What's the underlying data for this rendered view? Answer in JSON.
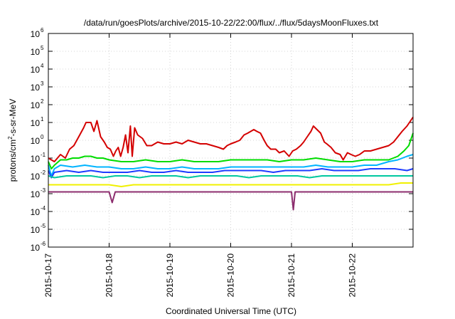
{
  "chart_data": {
    "type": "line",
    "title": "/data/run/goesPlots/archive/2015-10-22/22:00/flux/../flux/5daysMoonFluxes.txt",
    "xlabel": "Coordinated Universal Time (UTC)",
    "ylabel_parts": {
      "pre": "protons/cm",
      "sup": "2",
      "post": "-s-sr-MeV"
    },
    "x_ticks": [
      "2015-10-17",
      "2015-10-18",
      "2015-10-19",
      "2015-10-20",
      "2015-10-21",
      "2015-10-22"
    ],
    "y_ticks": [
      -6,
      -5,
      -4,
      -3,
      -2,
      -1,
      0,
      1,
      2,
      3,
      4,
      5,
      6
    ],
    "y_tick_base": "10",
    "xlim_days": [
      0,
      6.0
    ],
    "ylim_log10": [
      -6,
      6
    ],
    "y_scale": "log",
    "grid": true,
    "series": [
      {
        "color": "#d40000",
        "values": [
          [
            0.0,
            -1.0
          ],
          [
            0.1,
            -1.2
          ],
          [
            0.2,
            -0.8
          ],
          [
            0.28,
            -1.0
          ],
          [
            0.35,
            -0.5
          ],
          [
            0.42,
            -0.3
          ],
          [
            0.5,
            0.2
          ],
          [
            0.58,
            0.7
          ],
          [
            0.62,
            1.0
          ],
          [
            0.7,
            1.0
          ],
          [
            0.75,
            0.5
          ],
          [
            0.8,
            1.1
          ],
          [
            0.86,
            0.2
          ],
          [
            0.92,
            -0.1
          ],
          [
            0.97,
            -0.4
          ],
          [
            1.02,
            -0.5
          ],
          [
            1.07,
            -0.9
          ],
          [
            1.11,
            -0.6
          ],
          [
            1.15,
            -0.4
          ],
          [
            1.19,
            -0.9
          ],
          [
            1.23,
            -0.4
          ],
          [
            1.27,
            0.3
          ],
          [
            1.31,
            -0.7
          ],
          [
            1.35,
            0.8
          ],
          [
            1.38,
            -0.9
          ],
          [
            1.42,
            0.7
          ],
          [
            1.47,
            0.3
          ],
          [
            1.55,
            0.1
          ],
          [
            1.62,
            -0.3
          ],
          [
            1.7,
            -0.3
          ],
          [
            1.8,
            -0.1
          ],
          [
            1.9,
            -0.2
          ],
          [
            2.0,
            -0.2
          ],
          [
            2.1,
            -0.1
          ],
          [
            2.2,
            -0.2
          ],
          [
            2.3,
            0.0
          ],
          [
            2.4,
            -0.1
          ],
          [
            2.5,
            -0.2
          ],
          [
            2.6,
            -0.2
          ],
          [
            2.7,
            -0.3
          ],
          [
            2.8,
            -0.4
          ],
          [
            2.88,
            -0.5
          ],
          [
            2.94,
            -0.3
          ],
          [
            3.0,
            -0.2
          ],
          [
            3.08,
            -0.1
          ],
          [
            3.15,
            0.0
          ],
          [
            3.22,
            0.3
          ],
          [
            3.28,
            0.4
          ],
          [
            3.33,
            0.5
          ],
          [
            3.38,
            0.6
          ],
          [
            3.43,
            0.5
          ],
          [
            3.49,
            0.4
          ],
          [
            3.55,
            0.0
          ],
          [
            3.6,
            -0.3
          ],
          [
            3.66,
            -0.5
          ],
          [
            3.74,
            -0.5
          ],
          [
            3.8,
            -0.7
          ],
          [
            3.88,
            -0.6
          ],
          [
            3.96,
            -0.9
          ],
          [
            4.02,
            -0.6
          ],
          [
            4.08,
            -0.5
          ],
          [
            4.15,
            -0.3
          ],
          [
            4.2,
            -0.1
          ],
          [
            4.26,
            0.2
          ],
          [
            4.32,
            0.5
          ],
          [
            4.36,
            0.8
          ],
          [
            4.42,
            0.6
          ],
          [
            4.48,
            0.4
          ],
          [
            4.54,
            -0.1
          ],
          [
            4.58,
            -0.2
          ],
          [
            4.65,
            -0.4
          ],
          [
            4.72,
            -0.7
          ],
          [
            4.8,
            -0.8
          ],
          [
            4.85,
            -1.1
          ],
          [
            4.92,
            -0.7
          ],
          [
            4.98,
            -0.8
          ],
          [
            5.05,
            -0.9
          ],
          [
            5.12,
            -0.8
          ],
          [
            5.2,
            -0.6
          ],
          [
            5.3,
            -0.6
          ],
          [
            5.4,
            -0.5
          ],
          [
            5.5,
            -0.4
          ],
          [
            5.6,
            -0.3
          ],
          [
            5.68,
            -0.1
          ],
          [
            5.75,
            0.2
          ],
          [
            5.82,
            0.5
          ],
          [
            5.9,
            0.8
          ],
          [
            5.96,
            1.1
          ],
          [
            6.0,
            1.3
          ]
        ]
      },
      {
        "color": "#00dc00",
        "values": [
          [
            0.0,
            -1.2
          ],
          [
            0.05,
            -1.6
          ],
          [
            0.1,
            -1.4
          ],
          [
            0.2,
            -1.1
          ],
          [
            0.3,
            -1.1
          ],
          [
            0.4,
            -1.0
          ],
          [
            0.5,
            -1.0
          ],
          [
            0.6,
            -0.9
          ],
          [
            0.7,
            -0.9
          ],
          [
            0.8,
            -1.0
          ],
          [
            0.9,
            -1.0
          ],
          [
            1.0,
            -1.1
          ],
          [
            1.2,
            -1.2
          ],
          [
            1.4,
            -1.2
          ],
          [
            1.6,
            -1.1
          ],
          [
            1.8,
            -1.2
          ],
          [
            2.0,
            -1.2
          ],
          [
            2.2,
            -1.1
          ],
          [
            2.4,
            -1.2
          ],
          [
            2.6,
            -1.2
          ],
          [
            2.8,
            -1.2
          ],
          [
            3.0,
            -1.1
          ],
          [
            3.2,
            -1.1
          ],
          [
            3.4,
            -1.1
          ],
          [
            3.6,
            -1.1
          ],
          [
            3.8,
            -1.2
          ],
          [
            4.0,
            -1.1
          ],
          [
            4.2,
            -1.1
          ],
          [
            4.4,
            -1.0
          ],
          [
            4.6,
            -1.1
          ],
          [
            4.8,
            -1.2
          ],
          [
            5.0,
            -1.2
          ],
          [
            5.2,
            -1.1
          ],
          [
            5.4,
            -1.1
          ],
          [
            5.6,
            -1.1
          ],
          [
            5.75,
            -0.9
          ],
          [
            5.85,
            -0.6
          ],
          [
            5.93,
            -0.3
          ],
          [
            6.0,
            0.4
          ]
        ]
      },
      {
        "color": "#00b4ff",
        "values": [
          [
            0.0,
            -1.4
          ],
          [
            0.05,
            -2.0
          ],
          [
            0.1,
            -1.6
          ],
          [
            0.2,
            -1.4
          ],
          [
            0.4,
            -1.5
          ],
          [
            0.6,
            -1.4
          ],
          [
            0.8,
            -1.5
          ],
          [
            1.0,
            -1.5
          ],
          [
            1.2,
            -1.6
          ],
          [
            1.4,
            -1.6
          ],
          [
            1.6,
            -1.5
          ],
          [
            1.8,
            -1.6
          ],
          [
            2.0,
            -1.6
          ],
          [
            2.2,
            -1.5
          ],
          [
            2.4,
            -1.6
          ],
          [
            2.6,
            -1.6
          ],
          [
            2.8,
            -1.6
          ],
          [
            3.0,
            -1.5
          ],
          [
            3.2,
            -1.5
          ],
          [
            3.4,
            -1.5
          ],
          [
            3.6,
            -1.5
          ],
          [
            3.8,
            -1.5
          ],
          [
            4.0,
            -1.5
          ],
          [
            4.2,
            -1.5
          ],
          [
            4.4,
            -1.4
          ],
          [
            4.6,
            -1.5
          ],
          [
            4.8,
            -1.5
          ],
          [
            5.0,
            -1.5
          ],
          [
            5.2,
            -1.4
          ],
          [
            5.4,
            -1.4
          ],
          [
            5.6,
            -1.2
          ],
          [
            5.75,
            -1.1
          ],
          [
            5.9,
            -0.9
          ],
          [
            6.0,
            -0.8
          ]
        ]
      },
      {
        "color": "#1e3cff",
        "values": [
          [
            0.0,
            -1.7
          ],
          [
            0.05,
            -2.1
          ],
          [
            0.1,
            -1.8
          ],
          [
            0.3,
            -1.7
          ],
          [
            0.5,
            -1.8
          ],
          [
            0.7,
            -1.7
          ],
          [
            0.9,
            -1.8
          ],
          [
            1.1,
            -1.8
          ],
          [
            1.3,
            -1.8
          ],
          [
            1.5,
            -1.7
          ],
          [
            1.7,
            -1.8
          ],
          [
            1.9,
            -1.8
          ],
          [
            2.1,
            -1.7
          ],
          [
            2.3,
            -1.8
          ],
          [
            2.5,
            -1.8
          ],
          [
            2.7,
            -1.8
          ],
          [
            2.9,
            -1.7
          ],
          [
            3.1,
            -1.7
          ],
          [
            3.3,
            -1.7
          ],
          [
            3.5,
            -1.7
          ],
          [
            3.7,
            -1.8
          ],
          [
            3.9,
            -1.7
          ],
          [
            4.1,
            -1.7
          ],
          [
            4.3,
            -1.7
          ],
          [
            4.5,
            -1.6
          ],
          [
            4.7,
            -1.7
          ],
          [
            4.9,
            -1.7
          ],
          [
            5.1,
            -1.7
          ],
          [
            5.3,
            -1.6
          ],
          [
            5.5,
            -1.6
          ],
          [
            5.7,
            -1.6
          ],
          [
            5.9,
            -1.7
          ],
          [
            6.0,
            -1.6
          ]
        ]
      },
      {
        "color": "#00c8a0",
        "values": [
          [
            0.0,
            -2.0
          ],
          [
            0.1,
            -2.1
          ],
          [
            0.3,
            -2.0
          ],
          [
            0.5,
            -2.0
          ],
          [
            0.7,
            -2.0
          ],
          [
            0.9,
            -2.1
          ],
          [
            1.1,
            -2.0
          ],
          [
            1.3,
            -2.0
          ],
          [
            1.5,
            -2.1
          ],
          [
            1.7,
            -2.0
          ],
          [
            1.9,
            -2.0
          ],
          [
            2.1,
            -2.0
          ],
          [
            2.3,
            -2.1
          ],
          [
            2.5,
            -2.0
          ],
          [
            2.7,
            -2.0
          ],
          [
            2.9,
            -2.0
          ],
          [
            3.1,
            -2.0
          ],
          [
            3.3,
            -2.1
          ],
          [
            3.5,
            -2.0
          ],
          [
            3.7,
            -2.0
          ],
          [
            3.9,
            -2.0
          ],
          [
            4.1,
            -2.0
          ],
          [
            4.3,
            -2.1
          ],
          [
            4.5,
            -2.0
          ],
          [
            4.7,
            -2.0
          ],
          [
            4.9,
            -2.0
          ],
          [
            5.1,
            -2.0
          ],
          [
            5.3,
            -2.0
          ],
          [
            5.5,
            -2.0
          ],
          [
            5.7,
            -2.0
          ],
          [
            5.9,
            -2.0
          ],
          [
            6.0,
            -2.0
          ]
        ]
      },
      {
        "color": "#f0f000",
        "values": [
          [
            0.0,
            -2.5
          ],
          [
            0.2,
            -2.5
          ],
          [
            0.4,
            -2.5
          ],
          [
            0.6,
            -2.5
          ],
          [
            0.8,
            -2.5
          ],
          [
            1.0,
            -2.5
          ],
          [
            1.2,
            -2.6
          ],
          [
            1.4,
            -2.5
          ],
          [
            1.6,
            -2.5
          ],
          [
            1.8,
            -2.5
          ],
          [
            2.0,
            -2.5
          ],
          [
            2.2,
            -2.5
          ],
          [
            2.4,
            -2.5
          ],
          [
            2.6,
            -2.5
          ],
          [
            2.8,
            -2.5
          ],
          [
            3.0,
            -2.5
          ],
          [
            3.2,
            -2.5
          ],
          [
            3.4,
            -2.5
          ],
          [
            3.6,
            -2.5
          ],
          [
            3.8,
            -2.5
          ],
          [
            4.0,
            -2.5
          ],
          [
            4.2,
            -2.5
          ],
          [
            4.4,
            -2.5
          ],
          [
            4.6,
            -2.5
          ],
          [
            4.8,
            -2.5
          ],
          [
            5.0,
            -2.5
          ],
          [
            5.2,
            -2.5
          ],
          [
            5.4,
            -2.5
          ],
          [
            5.6,
            -2.5
          ],
          [
            5.8,
            -2.4
          ],
          [
            6.0,
            -2.4
          ]
        ]
      },
      {
        "color": "#8c2d6e",
        "values": [
          [
            0.0,
            -2.9
          ],
          [
            0.2,
            -2.9
          ],
          [
            0.4,
            -2.9
          ],
          [
            0.6,
            -2.9
          ],
          [
            0.8,
            -2.9
          ],
          [
            1.0,
            -2.9
          ],
          [
            1.05,
            -3.5
          ],
          [
            1.1,
            -2.9
          ],
          [
            1.4,
            -2.9
          ],
          [
            1.6,
            -2.9
          ],
          [
            1.8,
            -2.9
          ],
          [
            2.0,
            -2.9
          ],
          [
            2.2,
            -2.9
          ],
          [
            2.4,
            -2.9
          ],
          [
            2.6,
            -2.9
          ],
          [
            2.8,
            -2.9
          ],
          [
            3.0,
            -2.9
          ],
          [
            3.2,
            -2.9
          ],
          [
            3.4,
            -2.9
          ],
          [
            3.6,
            -2.9
          ],
          [
            3.8,
            -2.9
          ],
          [
            4.0,
            -2.9
          ],
          [
            4.03,
            -3.9
          ],
          [
            4.06,
            -2.9
          ],
          [
            4.4,
            -2.9
          ],
          [
            4.6,
            -2.9
          ],
          [
            4.8,
            -2.9
          ],
          [
            5.0,
            -2.9
          ],
          [
            5.2,
            -2.9
          ],
          [
            5.4,
            -2.9
          ],
          [
            5.6,
            -2.9
          ],
          [
            5.8,
            -2.9
          ],
          [
            6.0,
            -2.9
          ]
        ]
      }
    ]
  }
}
